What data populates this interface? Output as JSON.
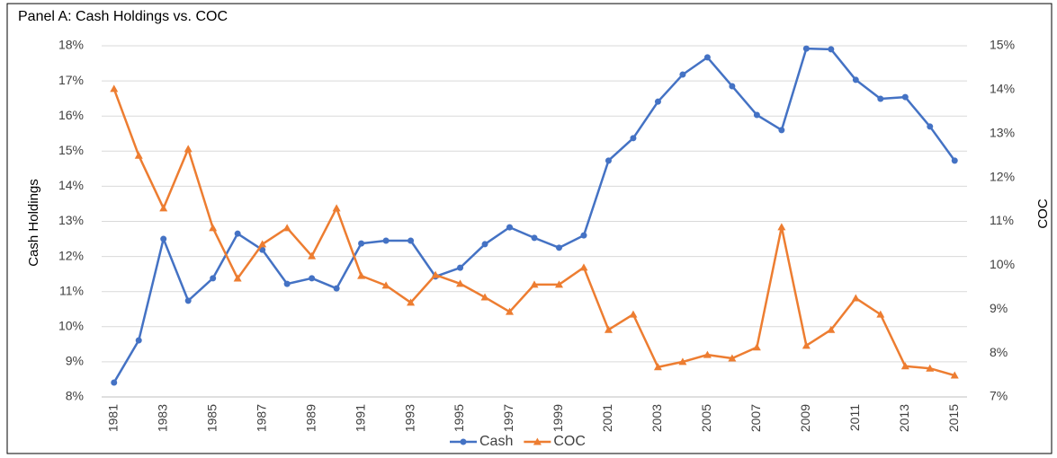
{
  "chart_data": {
    "type": "line",
    "title": "Panel A:  Cash Holdings vs. COC",
    "y_label": "Cash Holdings",
    "y2_label": "COC",
    "categories": [
      "1981",
      null,
      "1983",
      null,
      "1985",
      null,
      "1987",
      null,
      "1989",
      null,
      "1991",
      null,
      "1993",
      null,
      "1995",
      null,
      "1997",
      null,
      "1999",
      null,
      "2001",
      null,
      "2003",
      null,
      "2005",
      null,
      "2007",
      null,
      "2009",
      null,
      "2011",
      null,
      "2013",
      null,
      "2015"
    ],
    "series": [
      {
        "name": "Cash",
        "color": "#4472c4",
        "marker": "circle",
        "axis": "y",
        "values": [
          8.41,
          9.61,
          12.5,
          10.74,
          11.38,
          12.65,
          12.19,
          11.22,
          11.38,
          11.09,
          12.37,
          12.45,
          12.45,
          11.43,
          11.68,
          12.35,
          12.83,
          12.53,
          12.25,
          12.6,
          14.73,
          15.37,
          16.41,
          17.18,
          17.67,
          16.85,
          16.03,
          15.6,
          17.92,
          17.9,
          17.03,
          16.49,
          16.54,
          15.7,
          14.73
        ]
      },
      {
        "name": "COC",
        "color": "#ed7d31",
        "marker": "triangle",
        "axis": "y2",
        "values": [
          14.02,
          12.5,
          11.3,
          12.65,
          10.85,
          9.7,
          10.48,
          10.85,
          10.21,
          11.3,
          9.76,
          9.54,
          9.15,
          9.78,
          9.58,
          9.27,
          8.94,
          9.56,
          9.56,
          9.95,
          8.53,
          8.88,
          7.68,
          7.8,
          7.96,
          7.88,
          8.13,
          10.87,
          8.17,
          8.53,
          9.25,
          8.88,
          7.7,
          7.65,
          7.49
        ]
      }
    ],
    "ylim": [
      8,
      18
    ],
    "yticks": [
      {
        "value": 8,
        "label": "8%"
      },
      {
        "value": 9,
        "label": "9%"
      },
      {
        "value": 10,
        "label": "10%"
      },
      {
        "value": 11,
        "label": "11%"
      },
      {
        "value": 12,
        "label": "12%"
      },
      {
        "value": 13,
        "label": "13%"
      },
      {
        "value": 14,
        "label": "14%"
      },
      {
        "value": 15,
        "label": "15%"
      },
      {
        "value": 16,
        "label": "16%"
      },
      {
        "value": 17,
        "label": "17%"
      },
      {
        "value": 18,
        "label": "18%"
      }
    ],
    "y2lim": [
      7,
      15
    ],
    "y2ticks": [
      {
        "value": 7,
        "label": "7%"
      },
      {
        "value": 8,
        "label": "8%"
      },
      {
        "value": 9,
        "label": "9%"
      },
      {
        "value": 10,
        "label": "10%"
      },
      {
        "value": 11,
        "label": "11%"
      },
      {
        "value": 12,
        "label": "12%"
      },
      {
        "value": 13,
        "label": "13%"
      },
      {
        "value": 14,
        "label": "14%"
      },
      {
        "value": 15,
        "label": "15%"
      }
    ],
    "grid": true,
    "legend": "bottom"
  }
}
